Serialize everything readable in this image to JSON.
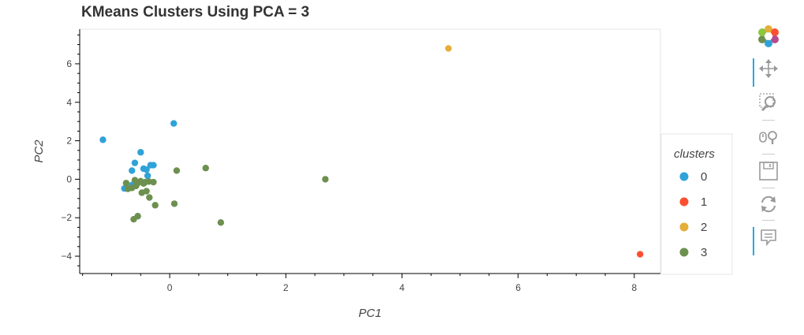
{
  "chart_data": {
    "type": "scatter",
    "title": "KMeans Clusters Using PCA = 3",
    "xlabel": "PC1",
    "ylabel": "PC2",
    "xlim": [
      -1.55,
      8.45
    ],
    "ylim": [
      -4.9,
      7.8
    ],
    "x_ticks": [
      0,
      2,
      4,
      6,
      8
    ],
    "y_ticks": [
      -4,
      -2,
      0,
      2,
      4,
      6
    ],
    "x_tick_labels": [
      "0",
      "2",
      "4",
      "6",
      "8"
    ],
    "y_tick_labels": [
      "−4",
      "−2",
      "0",
      "2",
      "4",
      "6"
    ],
    "grid": false,
    "legend_title": "clusters",
    "legend_position": "right",
    "series": [
      {
        "name": "0",
        "color": "#30a2da",
        "points": [
          [
            -1.15,
            2.05
          ],
          [
            0.07,
            2.9
          ],
          [
            -0.5,
            1.4
          ],
          [
            -0.6,
            0.85
          ],
          [
            -0.65,
            0.45
          ],
          [
            -0.45,
            0.55
          ],
          [
            -0.4,
            0.5
          ],
          [
            -0.33,
            0.73
          ],
          [
            -0.28,
            0.73
          ],
          [
            -0.38,
            0.18
          ],
          [
            -0.78,
            -0.48
          ],
          [
            -0.65,
            -0.3
          ]
        ]
      },
      {
        "name": "1",
        "color": "#fc4f30",
        "points": [
          [
            8.1,
            -3.9
          ]
        ]
      },
      {
        "name": "2",
        "color": "#e5ae38",
        "points": [
          [
            4.8,
            6.8
          ]
        ]
      },
      {
        "name": "3",
        "color": "#6d904f",
        "points": [
          [
            -0.75,
            -0.2
          ],
          [
            -0.72,
            -0.5
          ],
          [
            -0.65,
            -0.45
          ],
          [
            -0.6,
            -0.05
          ],
          [
            -0.55,
            -0.2
          ],
          [
            -0.5,
            -0.1
          ],
          [
            -0.48,
            -0.7
          ],
          [
            -0.42,
            -0.15
          ],
          [
            -0.4,
            -0.62
          ],
          [
            -0.36,
            -0.12
          ],
          [
            -0.35,
            -0.95
          ],
          [
            -0.28,
            -0.15
          ],
          [
            -0.25,
            -1.35
          ],
          [
            -0.62,
            -2.08
          ],
          [
            -0.55,
            -1.92
          ],
          [
            0.08,
            -1.27
          ],
          [
            0.12,
            0.45
          ],
          [
            0.62,
            0.58
          ],
          [
            0.88,
            -2.25
          ],
          [
            2.68,
            0.0
          ],
          [
            -0.58,
            -0.35
          ],
          [
            -0.45,
            -0.22
          ]
        ]
      }
    ]
  },
  "toolbar": {
    "tools": [
      {
        "name": "bokeh-logo",
        "icon": "bokeh-logo-icon"
      },
      {
        "name": "pan",
        "icon": "pan-icon",
        "active": true
      },
      {
        "name": "box-zoom",
        "icon": "box-zoom-icon"
      },
      {
        "name": "wheel-zoom",
        "icon": "wheel-zoom-icon"
      },
      {
        "name": "save",
        "icon": "save-icon"
      },
      {
        "name": "reset",
        "icon": "reset-icon"
      },
      {
        "name": "hover",
        "icon": "hover-icon",
        "active": true
      }
    ]
  }
}
